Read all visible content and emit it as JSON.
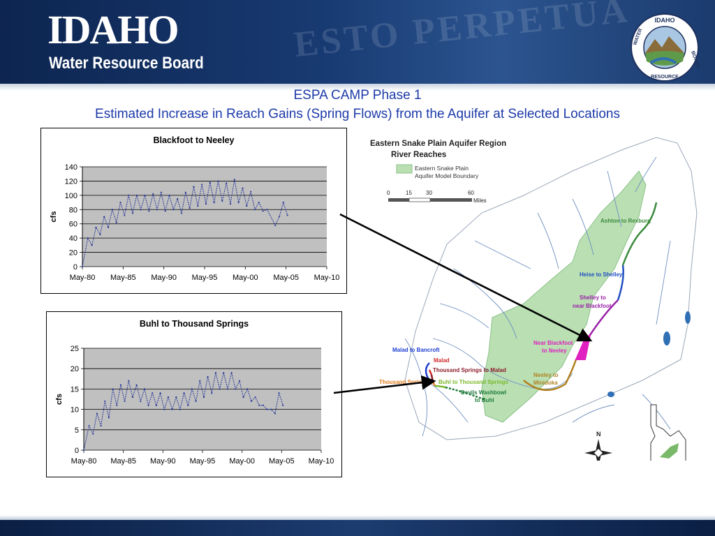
{
  "header": {
    "logo_title": "IDAHO",
    "logo_subtitle": "Water Resource Board",
    "background_seal_text": "ESTO PERPETUA",
    "seal_top_text": "IDAHO",
    "seal_left_text": "WATER",
    "seal_bottom_text": "RESOURCE",
    "seal_right_text": "BOARD"
  },
  "slide": {
    "title_line1": "ESPA CAMP Phase 1",
    "title_line2": "Estimated Increase in Reach Gains (Spring Flows) from the Aquifer at Selected Locations"
  },
  "colors": {
    "plot_bg": "#c0c0c0",
    "series": "#2b3a9a",
    "title_blue": "#1c3aa8",
    "aquifer": "#b9dfb3",
    "river": "#6f90c0"
  },
  "chart_data": [
    {
      "type": "line",
      "title": "Blackfoot to Neeley",
      "ylabel": "cfs",
      "xlabel": "",
      "x_tick_labels": [
        "May-80",
        "May-85",
        "May-90",
        "May-95",
        "May-00",
        "May-05",
        "May-10"
      ],
      "x_range": [
        1980.33,
        2010.33
      ],
      "ylim": [
        0,
        140
      ],
      "y_ticks": [
        0,
        20,
        40,
        60,
        80,
        100,
        120,
        140
      ],
      "grid": true,
      "legend": "none",
      "series": [
        {
          "x": [
            1980.33,
            1981.0,
            1981.5,
            1982.0,
            1982.5,
            1983.0,
            1983.5,
            1984.0,
            1984.5,
            1985.0,
            1985.5,
            1986.0,
            1986.5,
            1987.0,
            1987.5,
            1988.0,
            1988.5,
            1989.0,
            1989.5,
            1990.0,
            1990.5,
            1991.0,
            1991.5,
            1992.0,
            1992.5,
            1993.0,
            1993.5,
            1994.0,
            1994.5,
            1995.0,
            1995.5,
            1996.0,
            1996.5,
            1997.0,
            1997.5,
            1998.0,
            1998.5,
            1999.0,
            1999.5,
            2000.0,
            2000.5,
            2001.0,
            2001.5,
            2002.0,
            2002.5,
            2003.0,
            2004.0,
            2004.5,
            2005.0,
            2005.5
          ],
          "values": [
            0,
            40,
            30,
            55,
            45,
            70,
            55,
            80,
            62,
            90,
            72,
            100,
            75,
            100,
            80,
            100,
            78,
            102,
            80,
            104,
            78,
            100,
            80,
            95,
            75,
            104,
            82,
            112,
            85,
            115,
            88,
            118,
            90,
            120,
            92,
            117,
            88,
            122,
            90,
            110,
            85,
            105,
            80,
            90,
            78,
            80,
            58,
            70,
            90,
            72
          ]
        }
      ]
    },
    {
      "type": "line",
      "title": "Buhl to Thousand Springs",
      "ylabel": "cfs",
      "xlabel": "",
      "x_tick_labels": [
        "May-80",
        "May-85",
        "May-90",
        "May-95",
        "May-00",
        "May-05",
        "May-10"
      ],
      "x_range": [
        1980.33,
        2010.33
      ],
      "ylim": [
        0,
        25
      ],
      "y_ticks": [
        0,
        5,
        10,
        15,
        20,
        25
      ],
      "grid": true,
      "legend": "none",
      "series": [
        {
          "x": [
            1980.33,
            1981.0,
            1981.5,
            1982.0,
            1982.5,
            1983.0,
            1983.5,
            1984.0,
            1984.5,
            1985.0,
            1985.5,
            1986.0,
            1986.5,
            1987.0,
            1987.5,
            1988.0,
            1988.5,
            1989.0,
            1989.5,
            1990.0,
            1990.5,
            1991.0,
            1991.5,
            1992.0,
            1992.5,
            1993.0,
            1993.5,
            1994.0,
            1994.5,
            1995.0,
            1995.5,
            1996.0,
            1996.5,
            1997.0,
            1997.5,
            1998.0,
            1998.5,
            1999.0,
            1999.5,
            2000.0,
            2000.5,
            2001.0,
            2001.5,
            2002.0,
            2002.5,
            2003.0,
            2003.5,
            2004.0,
            2004.5,
            2005.0,
            2005.5
          ],
          "values": [
            0,
            6,
            4,
            9,
            6,
            12,
            8,
            15,
            11,
            16,
            12,
            17,
            13,
            16,
            12,
            15,
            11,
            14,
            11,
            14,
            10,
            13,
            10,
            13,
            10,
            14,
            11,
            15,
            12,
            17,
            13,
            18,
            14,
            19,
            15,
            19,
            15,
            19,
            15,
            17,
            13,
            15,
            12,
            13,
            11,
            11,
            10,
            10,
            9,
            14,
            11
          ]
        }
      ]
    }
  ],
  "map": {
    "title_line1": "Eastern Snake Plain Aquifer Region",
    "title_line2": "River Reaches",
    "legend_line1": "Eastern Snake Plain",
    "legend_line2": "Aquifer Model Boundary",
    "scale_ticks": [
      "0",
      "15",
      "30",
      "60"
    ],
    "scale_unit": "Miles",
    "north_label": "N",
    "reaches": {
      "ashton": "Ashton to Rexburg",
      "heise": "Heise to Shelley",
      "shelley_1": "Shelley to",
      "shelley_2": "near Blackfoot",
      "nearblackfoot_1": "Near Blackfoot",
      "nearblackfoot_2": "to Neeley",
      "malad_bancroft": "Malad to Bancroft",
      "malad": "Malad",
      "thousand_malad": "Thousand Springs to Malad",
      "thousand": "Thousand Springs",
      "buhl": "Buhl to Thousand Springs",
      "devils_1": "Devils Washbowl",
      "devils_2": "to Buhl",
      "neeley_1": "Neeley to",
      "neeley_2": "Minidoka"
    }
  }
}
